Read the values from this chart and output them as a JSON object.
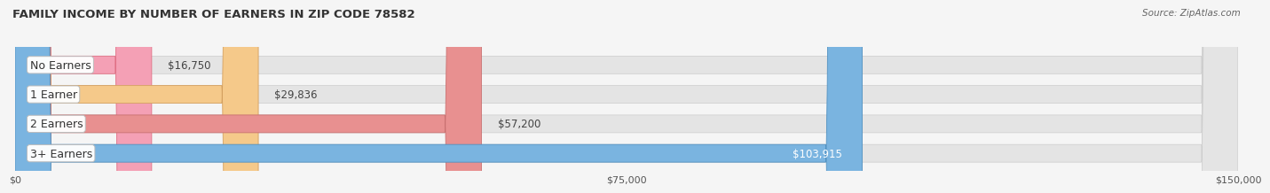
{
  "title": "FAMILY INCOME BY NUMBER OF EARNERS IN ZIP CODE 78582",
  "source": "Source: ZipAtlas.com",
  "categories": [
    "No Earners",
    "1 Earner",
    "2 Earners",
    "3+ Earners"
  ],
  "values": [
    16750,
    29836,
    57200,
    103915
  ],
  "bar_colors": [
    "#f4a0b5",
    "#f5c98a",
    "#e89090",
    "#7ab4e0"
  ],
  "bar_edge_colors": [
    "#e07085",
    "#d4a060",
    "#c87070",
    "#5090c0"
  ],
  "value_label_colors": [
    "#555555",
    "#555555",
    "#555555",
    "#ffffff"
  ],
  "x_max": 150000,
  "x_ticks": [
    0,
    75000,
    150000
  ],
  "x_tick_labels": [
    "$0",
    "$75,000",
    "$150,000"
  ],
  "background_color": "#f5f5f5",
  "bar_bg_color": "#e4e4e4",
  "title_fontsize": 9.5,
  "source_fontsize": 7.5,
  "label_fontsize": 9,
  "value_fontsize": 8.5
}
